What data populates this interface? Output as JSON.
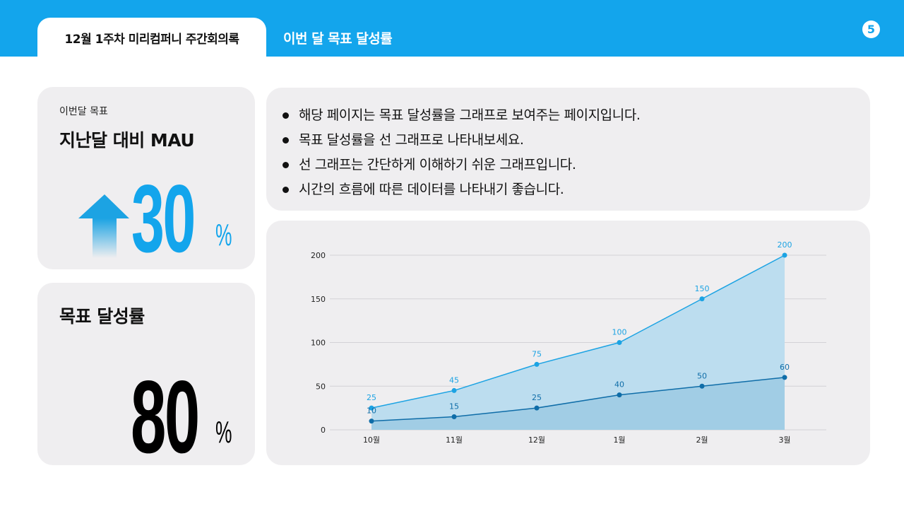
{
  "header": {
    "tab_label": "12월 1주차 미리컴퍼니 주간회의록",
    "page_title": "이번 달 목표 달성률",
    "page_number": "5",
    "color": "#13A5EC"
  },
  "mau_card": {
    "caption": "이번달 목표",
    "title": "지난달 대비 MAU",
    "value": "30",
    "unit": "%",
    "icon": "arrow-up-icon"
  },
  "goal_card": {
    "title": "목표 달성률",
    "value": "80",
    "unit": "%"
  },
  "notes": [
    "해당 페이지는 목표 달성률을 그래프로 보여주는 페이지입니다.",
    "목표 달성률을 선 그래프로 나타내보세요.",
    "선 그래프는 간단하게 이해하기 쉬운 그래프입니다.",
    "시간의 흐름에 따른 데이터를 나타내기 좋습니다."
  ],
  "chart_data": {
    "type": "area",
    "categories": [
      "10월",
      "11월",
      "12월",
      "1월",
      "2월",
      "3월"
    ],
    "ylim": [
      0,
      200
    ],
    "yticks": [
      "0",
      "50",
      "100",
      "150",
      "200"
    ],
    "grid": true,
    "series": [
      {
        "values": [
          25,
          45,
          75,
          100,
          150,
          200
        ],
        "labels": [
          "25",
          "45",
          "75",
          "100",
          "150",
          "200"
        ],
        "color": "#1CA3E3"
      },
      {
        "values": [
          10,
          15,
          25,
          40,
          50,
          60
        ],
        "labels": [
          "10",
          "15",
          "25",
          "40",
          "50",
          "60"
        ],
        "color": "#0F6DA8"
      }
    ]
  }
}
